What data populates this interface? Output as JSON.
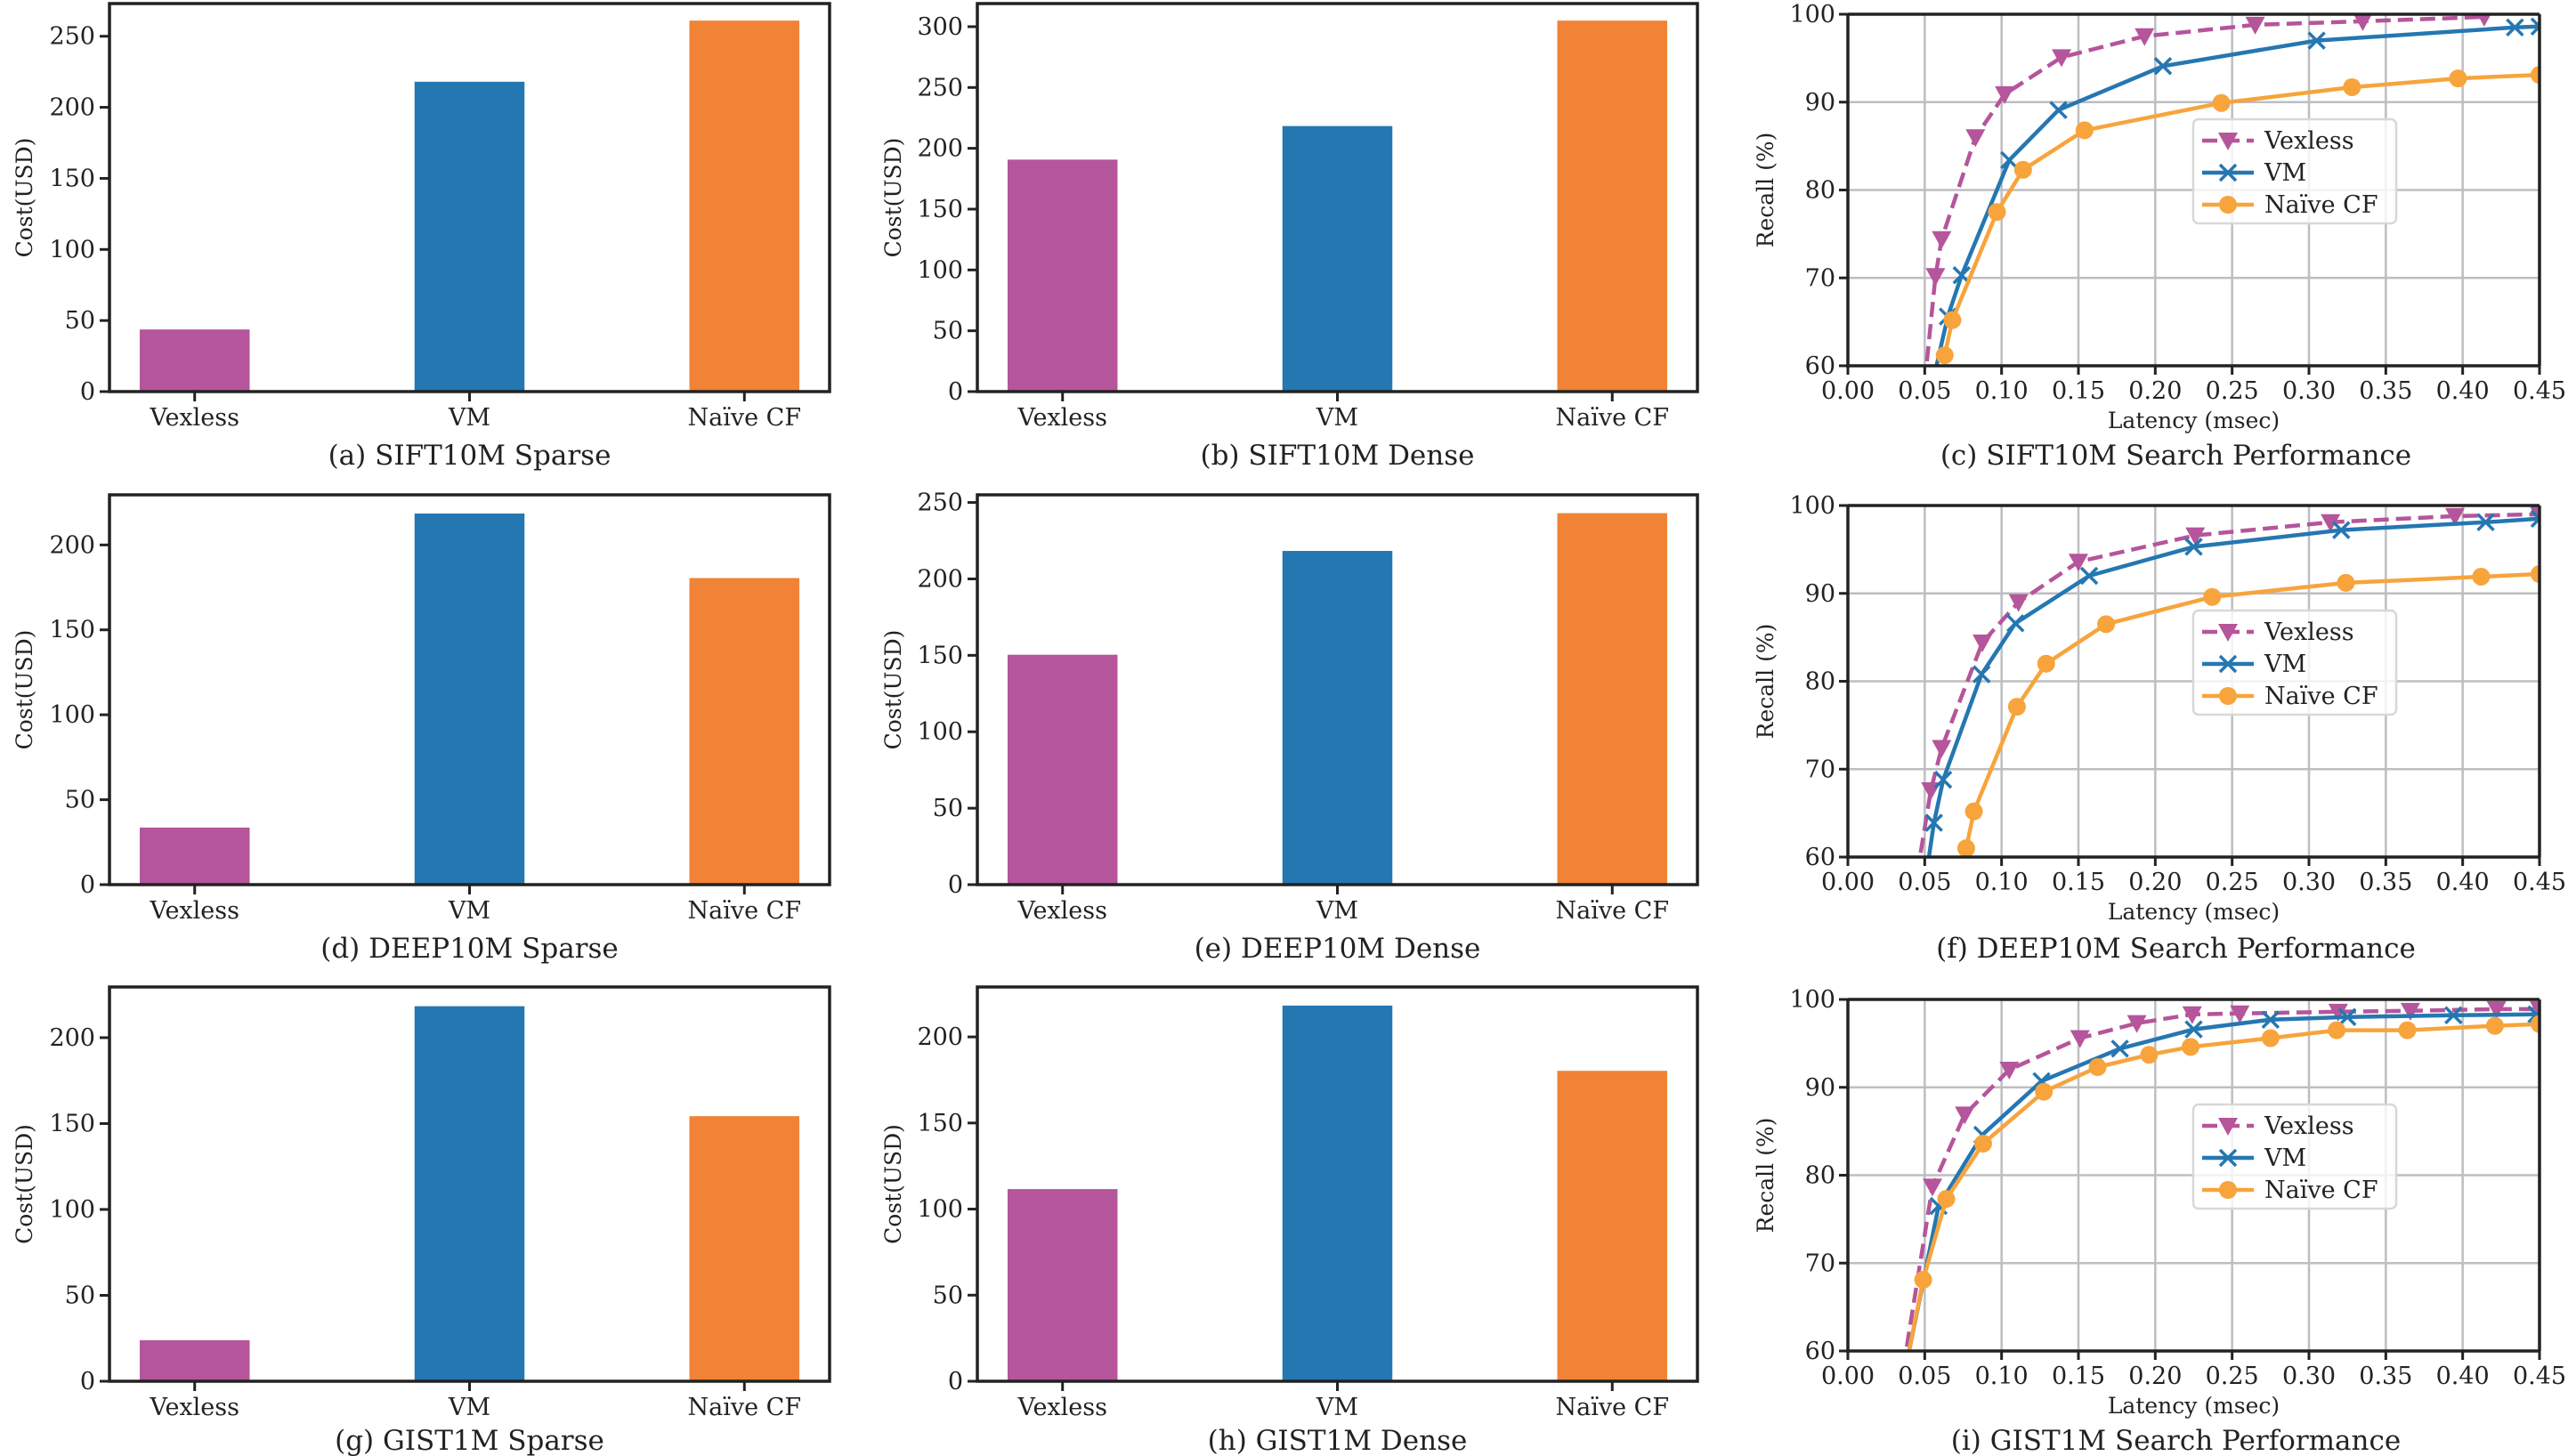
{
  "colors": {
    "Vexless": "#b5559b",
    "VM": "#2577b1",
    "Naive CF": "#f08336",
    "Naive CF line": "#f7a43c",
    "grid": "#bdbec2",
    "axis": "#222222"
  },
  "chart_data": [
    {
      "id": "a",
      "type": "bar",
      "title": "(a) SIFT10M Sparse",
      "xlabel": "",
      "ylabel": "Cost(USD)",
      "categories": [
        "Vexless",
        "VM",
        "Naïve CF"
      ],
      "values": [
        43.7,
        218.0,
        261.0
      ],
      "ylim": [
        0,
        273
      ],
      "yticks": [
        0,
        50,
        100,
        150,
        200,
        250
      ],
      "grid": false
    },
    {
      "id": "b",
      "type": "bar",
      "title": "(b) SIFT10M Dense",
      "xlabel": "",
      "ylabel": "Cost(USD)",
      "categories": [
        "Vexless",
        "VM",
        "Naïve CF"
      ],
      "values": [
        190.7,
        218.3,
        305.0
      ],
      "ylim": [
        0,
        319
      ],
      "yticks": [
        0,
        50,
        100,
        150,
        200,
        250,
        300
      ],
      "grid": false
    },
    {
      "id": "c",
      "type": "line",
      "title": "(c) SIFT10M Search Performance",
      "xlabel": "Latency (msec)",
      "ylabel": "Recall (%)",
      "xlim": [
        0,
        0.45
      ],
      "ylim": [
        60,
        100
      ],
      "xticks": [
        "0.00",
        "0.05",
        "0.10",
        "0.15",
        "0.20",
        "0.25",
        "0.30",
        "0.35",
        "0.40",
        "0.45"
      ],
      "yticks": [
        60,
        70,
        80,
        90,
        100
      ],
      "grid": true,
      "legend": "center-right",
      "series": [
        {
          "name": "Vexless",
          "marker": "triangle-down",
          "dash": true,
          "points": [
            [
              0.05,
              58.0
            ],
            [
              0.057,
              70.2
            ],
            [
              0.061,
              74.4
            ],
            [
              0.083,
              86.0
            ],
            [
              0.102,
              90.9
            ],
            [
              0.139,
              95.1
            ],
            [
              0.193,
              97.5
            ],
            [
              0.265,
              98.8
            ],
            [
              0.335,
              99.2
            ],
            [
              0.414,
              99.7
            ]
          ]
        },
        {
          "name": "VM",
          "marker": "x",
          "dash": false,
          "points": [
            [
              0.055,
              58.0
            ],
            [
              0.065,
              65.6
            ],
            [
              0.074,
              70.3
            ],
            [
              0.105,
              83.4
            ],
            [
              0.137,
              89.1
            ],
            [
              0.205,
              94.1
            ],
            [
              0.305,
              97.0
            ],
            [
              0.434,
              98.5
            ],
            [
              0.45,
              98.6
            ]
          ]
        },
        {
          "name": "Naïve CF",
          "marker": "circle",
          "dash": false,
          "points": [
            [
              0.063,
              61.2
            ],
            [
              0.068,
              65.2
            ],
            [
              0.097,
              77.5
            ],
            [
              0.114,
              82.3
            ],
            [
              0.154,
              86.8
            ],
            [
              0.243,
              89.9
            ],
            [
              0.328,
              91.7
            ],
            [
              0.397,
              92.7
            ],
            [
              0.45,
              93.1
            ]
          ]
        }
      ]
    },
    {
      "id": "d",
      "type": "bar",
      "title": "(d) DEEP10M Sparse",
      "xlabel": "",
      "ylabel": "Cost(USD)",
      "categories": [
        "Vexless",
        "VM",
        "Naïve CF"
      ],
      "values": [
        33.6,
        218.5,
        180.5
      ],
      "ylim": [
        0,
        229.5
      ],
      "yticks": [
        0,
        50,
        100,
        150,
        200
      ],
      "grid": false
    },
    {
      "id": "e",
      "type": "bar",
      "title": "(e) DEEP10M Dense",
      "xlabel": "",
      "ylabel": "Cost(USD)",
      "categories": [
        "Vexless",
        "VM",
        "Naïve CF"
      ],
      "values": [
        150.4,
        218.3,
        243.0
      ],
      "ylim": [
        0,
        255
      ],
      "yticks": [
        0,
        50,
        100,
        150,
        200,
        250
      ],
      "grid": false
    },
    {
      "id": "f",
      "type": "line",
      "title": "(f) DEEP10M Search Performance",
      "xlabel": "Latency (msec)",
      "ylabel": "Recall (%)",
      "xlim": [
        0,
        0.45
      ],
      "ylim": [
        60,
        100
      ],
      "xticks": [
        "0.00",
        "0.05",
        "0.10",
        "0.15",
        "0.20",
        "0.25",
        "0.30",
        "0.35",
        "0.40",
        "0.45"
      ],
      "yticks": [
        60,
        70,
        80,
        90,
        100
      ],
      "grid": true,
      "legend": "center-right",
      "series": [
        {
          "name": "Vexless",
          "marker": "triangle-down",
          "dash": true,
          "points": [
            [
              0.045,
              58.0
            ],
            [
              0.054,
              67.6
            ],
            [
              0.061,
              72.4
            ],
            [
              0.0875,
              84.4
            ],
            [
              0.111,
              89.0
            ],
            [
              0.15,
              93.6
            ],
            [
              0.226,
              96.6
            ],
            [
              0.314,
              98.1
            ],
            [
              0.395,
              98.8
            ],
            [
              0.45,
              99.0
            ]
          ]
        },
        {
          "name": "VM",
          "marker": "x",
          "dash": false,
          "points": [
            [
              0.051,
              58.0
            ],
            [
              0.056,
              63.9
            ],
            [
              0.062,
              68.8
            ],
            [
              0.087,
              80.8
            ],
            [
              0.109,
              86.6
            ],
            [
              0.157,
              92.0
            ],
            [
              0.225,
              95.3
            ],
            [
              0.321,
              97.2
            ],
            [
              0.415,
              98.1
            ],
            [
              0.45,
              98.5
            ]
          ]
        },
        {
          "name": "Naïve CF",
          "marker": "circle",
          "dash": false,
          "points": [
            [
              0.077,
              61.0
            ],
            [
              0.082,
              65.2
            ],
            [
              0.11,
              77.1
            ],
            [
              0.129,
              82.0
            ],
            [
              0.168,
              86.5
            ],
            [
              0.237,
              89.6
            ],
            [
              0.324,
              91.2
            ],
            [
              0.412,
              91.9
            ],
            [
              0.45,
              92.2
            ]
          ]
        }
      ]
    },
    {
      "id": "g",
      "type": "bar",
      "title": "(g) GIST1M Sparse",
      "xlabel": "",
      "ylabel": "Cost(USD)",
      "categories": [
        "Vexless",
        "VM",
        "Naïve CF"
      ],
      "values": [
        23.9,
        218.3,
        154.3
      ],
      "ylim": [
        0,
        229.5
      ],
      "yticks": [
        0,
        50,
        100,
        150,
        200
      ],
      "grid": false
    },
    {
      "id": "h",
      "type": "bar",
      "title": "(h) GIST1M Dense",
      "xlabel": "",
      "ylabel": "Cost(USD)",
      "categories": [
        "Vexless",
        "VM",
        "Naïve CF"
      ],
      "values": [
        111.6,
        218.2,
        180.3
      ],
      "ylim": [
        0,
        229
      ],
      "yticks": [
        0,
        50,
        100,
        150,
        200
      ],
      "grid": false
    },
    {
      "id": "i",
      "type": "line",
      "title": "(i) GIST1M Search Performance",
      "xlabel": "Latency (msec)",
      "ylabel": "Recall (%)",
      "xlim": [
        0,
        0.45
      ],
      "ylim": [
        60,
        100
      ],
      "xticks": [
        "0.00",
        "0.05",
        "0.10",
        "0.15",
        "0.20",
        "0.25",
        "0.30",
        "0.35",
        "0.40",
        "0.45"
      ],
      "yticks": [
        60,
        70,
        80,
        90,
        100
      ],
      "grid": true,
      "legend": "center-right",
      "series": [
        {
          "name": "Vexless",
          "marker": "triangle-down",
          "dash": true,
          "points": [
            [
              0.036,
              58.0
            ],
            [
              0.055,
              78.7
            ],
            [
              0.076,
              86.9
            ],
            [
              0.105,
              92.0
            ],
            [
              0.151,
              95.6
            ],
            [
              0.188,
              97.3
            ],
            [
              0.224,
              98.3
            ],
            [
              0.255,
              98.4
            ],
            [
              0.319,
              98.6
            ],
            [
              0.366,
              98.7
            ],
            [
              0.422,
              98.9
            ],
            [
              0.45,
              98.9
            ]
          ]
        },
        {
          "name": "VM",
          "marker": "x",
          "dash": false,
          "points": [
            [
              0.0375,
              58.0
            ],
            [
              0.059,
              76.5
            ],
            [
              0.0875,
              84.6
            ],
            [
              0.126,
              90.7
            ],
            [
              0.177,
              94.4
            ],
            [
              0.225,
              96.6
            ],
            [
              0.275,
              97.7
            ],
            [
              0.325,
              98.0
            ],
            [
              0.394,
              98.2
            ],
            [
              0.448,
              98.3
            ]
          ]
        },
        {
          "name": "Naïve CF",
          "marker": "circle",
          "dash": false,
          "points": [
            [
              0.0375,
              58.0
            ],
            [
              0.049,
              68.1
            ],
            [
              0.064,
              77.3
            ],
            [
              0.088,
              83.6
            ],
            [
              0.1275,
              89.5
            ],
            [
              0.1625,
              92.3
            ],
            [
              0.196,
              93.7
            ],
            [
              0.223,
              94.6
            ],
            [
              0.275,
              95.6
            ],
            [
              0.318,
              96.5
            ],
            [
              0.364,
              96.5
            ],
            [
              0.421,
              97.0
            ],
            [
              0.45,
              97.2
            ]
          ]
        }
      ]
    }
  ]
}
